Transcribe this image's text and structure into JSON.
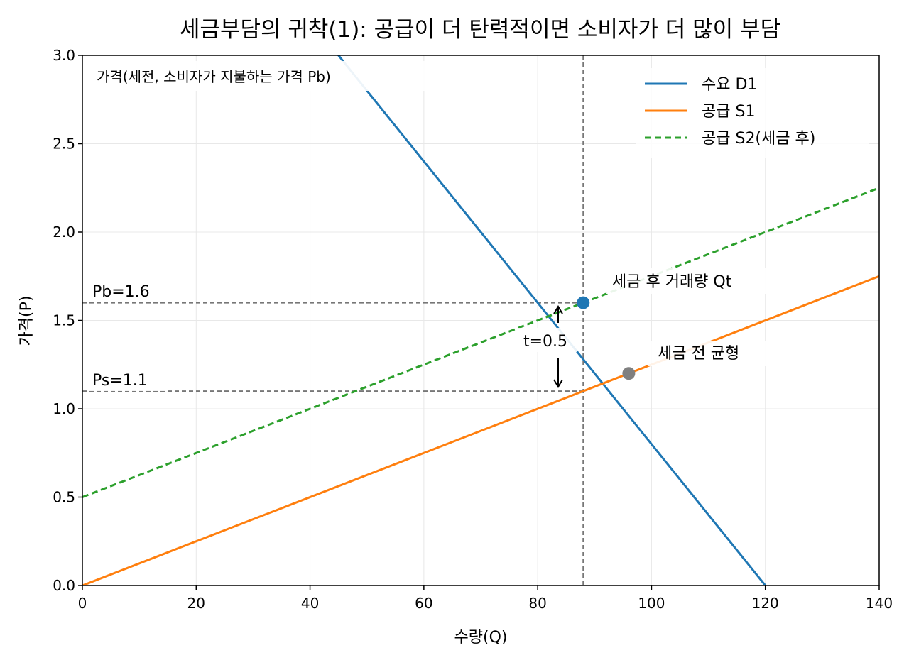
{
  "chart_data": {
    "type": "line",
    "title": "세금부담의 귀착(1): 공급이 더 탄력적이면 소비자가 더 많이 부담",
    "xlabel": "수량(Q)",
    "ylabel": "가격(P)",
    "xlim": [
      0,
      140
    ],
    "ylim": [
      0,
      3
    ],
    "xticks": [
      0,
      20,
      40,
      60,
      80,
      100,
      120,
      140
    ],
    "yticks": [
      0.0,
      0.5,
      1.0,
      1.5,
      2.0,
      2.5,
      3.0
    ],
    "xtick_labels": [
      "0",
      "20",
      "40",
      "60",
      "80",
      "100",
      "120",
      "140"
    ],
    "ytick_labels": [
      "0.0",
      "0.5",
      "1.0",
      "1.5",
      "2.0",
      "2.5",
      "3.0"
    ],
    "grid": true,
    "legend_position": "top-right",
    "series": [
      {
        "name": "수요 D1",
        "color": "#1f77b4",
        "style": "solid",
        "x": [
          0,
          120
        ],
        "y": [
          4.8,
          0
        ]
      },
      {
        "name": "공급 S1",
        "color": "#ff7f0e",
        "style": "solid",
        "x": [
          0,
          140
        ],
        "y": [
          0,
          1.75
        ]
      },
      {
        "name": "공급 S2(세금 후)",
        "color": "#2ca02c",
        "style": "dashed",
        "x": [
          0,
          140
        ],
        "y": [
          0.5,
          2.25
        ]
      }
    ],
    "points": [
      {
        "x": 88,
        "y": 1.6,
        "color": "#1f77b4"
      },
      {
        "x": 96,
        "y": 1.2,
        "color": "#808080"
      }
    ],
    "reference_lines": {
      "vertical_x": 88,
      "horizontal_y": [
        1.6,
        1.1
      ]
    },
    "annotations": {
      "pb_label": "Pb=1.6",
      "ps_label": "Ps=1.1",
      "tax_label": "t=0.5",
      "after_tax_label": "세금 후 거래량 Qt",
      "pre_tax_label": "세금 전 균형",
      "corner_label": "가격(세전, 소비자가 지불하는 가격 Pb)"
    }
  }
}
